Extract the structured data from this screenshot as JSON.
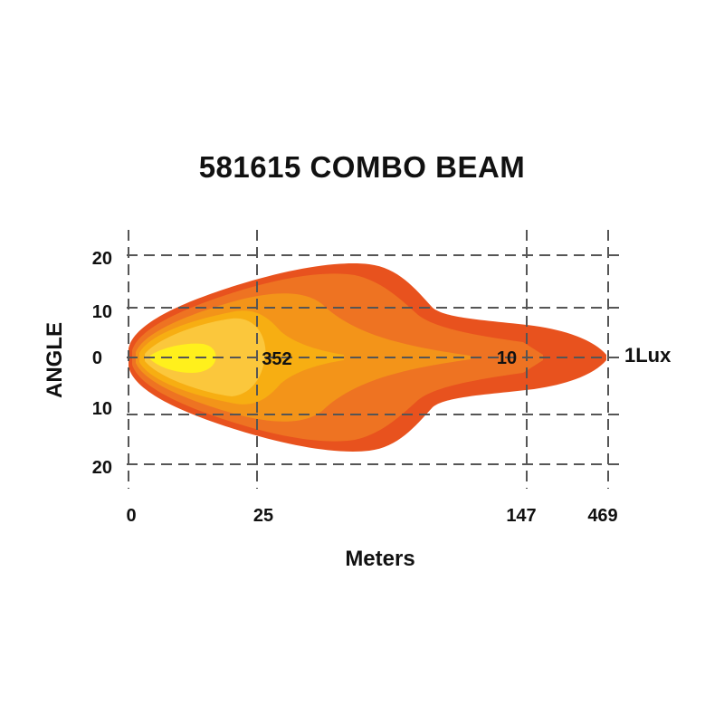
{
  "chart_data": {
    "type": "area",
    "title": "581615 COMBO BEAM",
    "xlabel": "Meters",
    "ylabel": "ANGLE",
    "x_ticks": [
      "0",
      "25",
      "147",
      "469"
    ],
    "y_ticks": [
      "20",
      "10",
      "0",
      "10",
      "20"
    ],
    "grid": true,
    "lux_values": [
      {
        "label": "352",
        "distance": 25
      },
      {
        "label": "10",
        "distance": 147
      },
      {
        "label": "1Lux",
        "distance": 469
      }
    ],
    "colors": {
      "outer": "#e8521e",
      "band2": "#ee7322",
      "band3": "#f39419",
      "band4": "#f7ae12",
      "band5": "#fbc73c",
      "core": "#fff01c",
      "grid": "#555555",
      "text": "#111111"
    }
  }
}
